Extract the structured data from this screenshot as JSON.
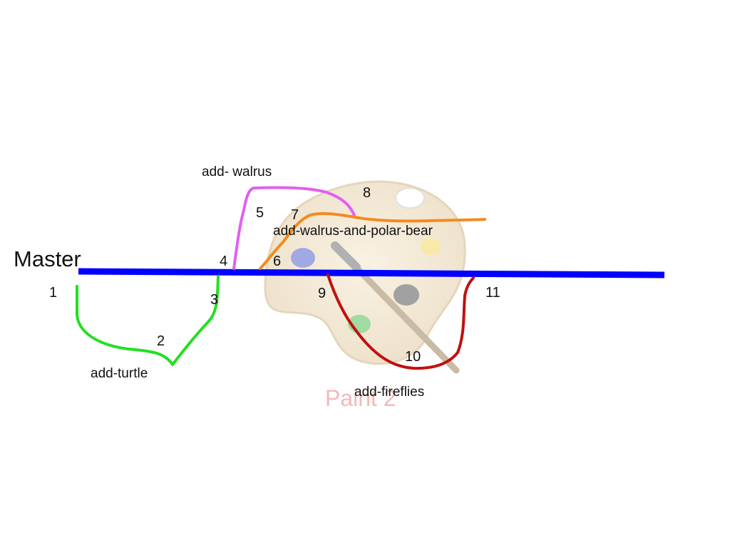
{
  "watermark": {
    "text": "Paint 2",
    "icon": "paint-palette-icon",
    "text_color": "#f4b8b8"
  },
  "master": {
    "label": "Master",
    "color": "#0000ff"
  },
  "branches": [
    {
      "id": "turtle",
      "label": "add-turtle",
      "color": "#22e022"
    },
    {
      "id": "walrus",
      "label": "add- walrus",
      "color": "#e060f0"
    },
    {
      "id": "polar",
      "label": "add-walrus-and-polar-bear",
      "color": "#f58a1e"
    },
    {
      "id": "fireflies",
      "label": "add-fireflies",
      "color": "#c01010"
    }
  ],
  "commits": [
    "1",
    "2",
    "3",
    "4",
    "5",
    "6",
    "7",
    "8",
    "9",
    "10",
    "11"
  ]
}
